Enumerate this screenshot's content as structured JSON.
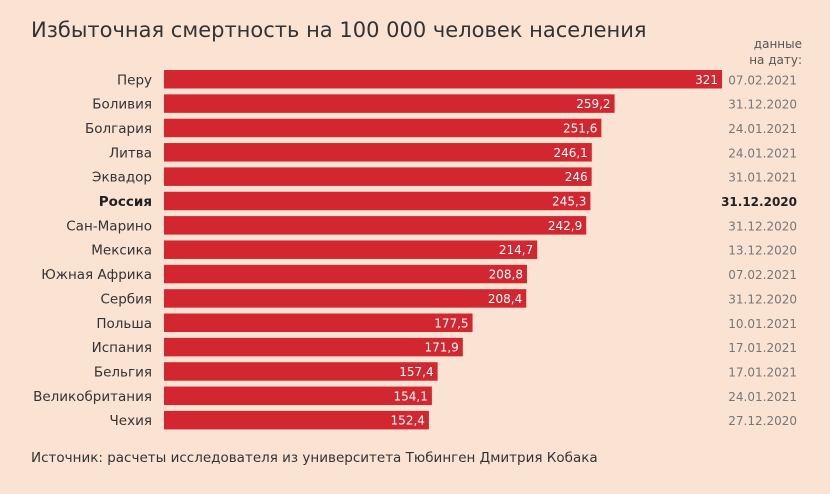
{
  "title": "Избыточная смертность на 100 000 человек населения",
  "date_header": [
    "данные",
    "на дату:"
  ],
  "source": "Источник: расчеты исследователя из университета Тюбинген Дмитрия Кобака",
  "colors": {
    "bar": "#d22630",
    "bar_label": "#ffffff",
    "country": "#333333",
    "date": "#777777",
    "highlight": "#222222",
    "background": "#fbe3d4"
  },
  "chart_data": {
    "type": "bar",
    "orientation": "horizontal",
    "title": "Избыточная смертность на 100 000 человек населения",
    "categories": [
      "Перу",
      "Боливия",
      "Болгария",
      "Литва",
      "Эквадор",
      "Россия",
      "Сан-Марино",
      "Мексика",
      "Южная Африка",
      "Сербия",
      "Польша",
      "Испания",
      "Бельгия",
      "Великобритания",
      "Чехия"
    ],
    "values": [
      321,
      259.2,
      251.6,
      246.1,
      246,
      245.3,
      242.9,
      214.7,
      208.8,
      208.4,
      177.5,
      171.9,
      157.4,
      154.1,
      152.4
    ],
    "value_labels": [
      "321",
      "259,2",
      "251,6",
      "246,1",
      "246",
      "245,3",
      "242,9",
      "214,7",
      "208,8",
      "208,4",
      "177,5",
      "171,9",
      "157,4",
      "154,1",
      "152,4"
    ],
    "dates": [
      "07.02.2021",
      "31.12.2020",
      "24.01.2021",
      "24.01.2021",
      "31.01.2021",
      "31.12.2020",
      "31.12.2020",
      "13.12.2020",
      "07.02.2021",
      "31.12.2020",
      "10.01.2021",
      "17.01.2021",
      "17.01.2021",
      "24.01.2021",
      "27.12.2020"
    ],
    "highlight": "Россия",
    "xlim": [
      0,
      321
    ],
    "grid": false,
    "legend": "none"
  }
}
